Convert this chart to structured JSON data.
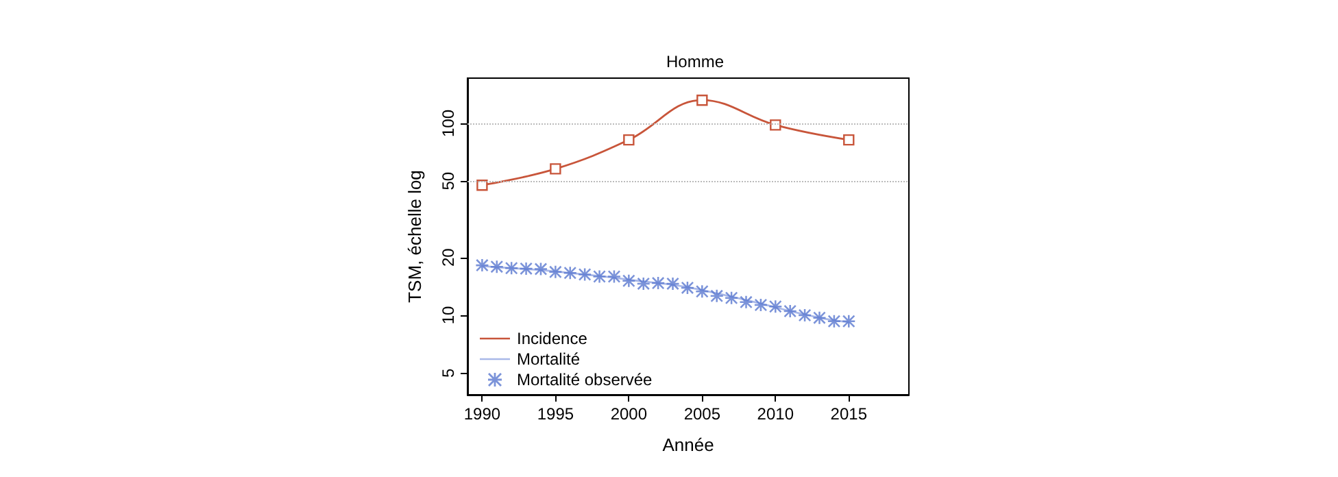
{
  "chart_data": {
    "type": "line",
    "title": "Homme",
    "xlabel": "Année",
    "ylabel": "TSM, échelle log",
    "log": "y",
    "grid": false,
    "legend": "bottom left",
    "xlim": [
      1989,
      2019.1
    ],
    "xticks": [
      1990,
      1995,
      2000,
      2005,
      2010,
      2015
    ],
    "ylim": [
      3.85,
      172
    ],
    "yticks": [
      5,
      10,
      20,
      50,
      100
    ],
    "ref_lines": [
      {
        "axis": "y",
        "value": 50,
        "color": "#bbbbbb",
        "line_style": "dotted"
      },
      {
        "axis": "y",
        "value": 100,
        "color": "#bbbbbb",
        "line_style": "dotted"
      }
    ],
    "series": [
      {
        "name": "Incidence",
        "color": "#c8553a",
        "marker": "square",
        "line_style": "solid",
        "x": [
          1990,
          1995,
          2000,
          2005,
          2010,
          2015
        ],
        "values": [
          47.6,
          57.9,
          82,
          132,
          98,
          82
        ]
      },
      {
        "name": "Mortalité",
        "color": "#a9b8e8",
        "marker": "none",
        "line_style": "solid",
        "x": [
          1990,
          1991,
          1992,
          1993,
          1994,
          1995,
          1996,
          1997,
          1998,
          1999,
          2000,
          2001,
          2002,
          2003,
          2004,
          2005,
          2006,
          2007,
          2008,
          2009,
          2010,
          2011,
          2012,
          2013,
          2014,
          2015
        ],
        "values": [
          18.1,
          17.8,
          17.6,
          17.4,
          17.2,
          16.9,
          16.6,
          16.3,
          16.0,
          15.7,
          15.3,
          15.0,
          14.7,
          14.4,
          14.0,
          13.5,
          13.0,
          12.5,
          12.0,
          11.5,
          11.0,
          10.5,
          10.1,
          9.7,
          9.4,
          9.2
        ]
      },
      {
        "name": "Mortalité observée",
        "type": "scatter",
        "color": "#5a78d0",
        "marker": "star",
        "x": [
          1990,
          1991,
          1992,
          1993,
          1994,
          1995,
          1996,
          1997,
          1998,
          1999,
          2000,
          2001,
          2002,
          2003,
          2004,
          2005,
          2006,
          2007,
          2008,
          2009,
          2010,
          2011,
          2012,
          2013,
          2014,
          2015
        ],
        "values": [
          18.2,
          17.9,
          17.6,
          17.5,
          17.4,
          16.8,
          16.6,
          16.3,
          15.9,
          15.9,
          15.1,
          14.6,
          14.7,
          14.6,
          13.9,
          13.3,
          12.6,
          12.3,
          11.7,
          11.3,
          11.1,
          10.5,
          10.0,
          9.7,
          9.3,
          9.3
        ]
      }
    ]
  }
}
